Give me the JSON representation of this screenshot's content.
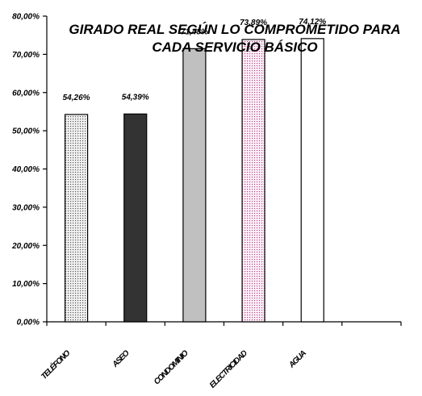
{
  "chart_data": {
    "type": "bar",
    "title_lines": [
      "GIRADO REAL SEGÚN LO COMPROMETIDO PARA",
      "CADA SERVICIO BÁSICO"
    ],
    "categories": [
      "TELÉFONO",
      "ASEO",
      "CONDOMINIO",
      "ELECTRICIDAD",
      "AGUA"
    ],
    "values": [
      54.26,
      54.39,
      71.48,
      73.89,
      74.12
    ],
    "data_labels": [
      "54,26%",
      "54,39%",
      "71,48%",
      "73,89%",
      "74,12%"
    ],
    "y_ticks": [
      "0,00%",
      "10,00%",
      "20,00%",
      "30,00%",
      "40,00%",
      "50,00%",
      "60,00%",
      "70,00%",
      "80,00%"
    ],
    "ylim": [
      0,
      80
    ],
    "grid": false,
    "legend": "none",
    "bar_fills": [
      "#e6e6e6",
      "#333333",
      "#c0c0c0",
      "#f6eef6",
      "#ffffff"
    ]
  }
}
